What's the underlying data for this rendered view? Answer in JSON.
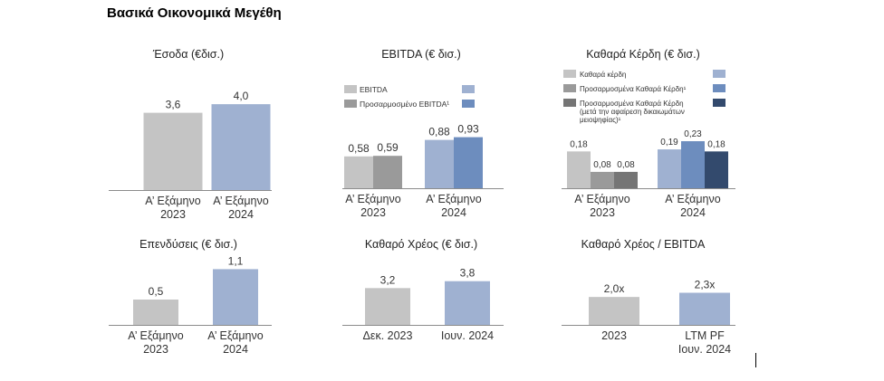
{
  "page": {
    "title": "Βασικά Οικονομικά Μεγέθη"
  },
  "colors": {
    "gray_light": "#c4c4c4",
    "gray_mid": "#9a9a9a",
    "gray_dark": "#757575",
    "blue_light": "#9fb1d1",
    "blue_mid": "#6d8dbe",
    "blue_dark": "#334a6d"
  },
  "chart_data": [
    {
      "type": "bar",
      "title": "Έσοδα (€δισ.)",
      "categories": [
        [
          "Α’ Εξάμηνο",
          "2023"
        ],
        [
          "Α’ Εξάμηνο",
          "2024"
        ]
      ],
      "series": [
        {
          "values": [
            3.6,
            4.0
          ],
          "labels": [
            "3,6",
            "4,0"
          ],
          "colors": [
            "#c4c4c4",
            "#9fb1d1"
          ]
        }
      ],
      "ylim": [
        0,
        4.3
      ]
    },
    {
      "type": "bar",
      "title": "EBITDA (€ δισ.)",
      "categories": [
        [
          "Α’ Εξάμηνο",
          "2023"
        ],
        [
          "Α’ Εξάμηνο",
          "2024"
        ]
      ],
      "series": [
        {
          "name": "EBITDA",
          "values": [
            0.58,
            0.88
          ],
          "labels": [
            "0,58",
            "0,88"
          ],
          "colors": [
            "#c4c4c4",
            "#9fb1d1"
          ]
        },
        {
          "name": "Προσαρμοσμένο EBITDA¹",
          "values": [
            0.59,
            0.93
          ],
          "labels": [
            "0,59",
            "0,93"
          ],
          "colors": [
            "#9a9a9a",
            "#6d8dbe"
          ]
        }
      ],
      "legend": [
        {
          "label": "EBITDA",
          "gray": "#c4c4c4",
          "blue": "#9fb1d1"
        },
        {
          "label": "Προσαρμοσμένο EBITDA¹",
          "gray": "#9a9a9a",
          "blue": "#6d8dbe"
        }
      ],
      "ylim": [
        0,
        1.5
      ]
    },
    {
      "type": "bar",
      "title": "Καθαρά Κέρδη (€ δισ.)",
      "categories": [
        [
          "Α’ Εξάμηνο",
          "2023"
        ],
        [
          "Α’ Εξάμηνο",
          "2024"
        ]
      ],
      "series": [
        {
          "name": "Καθαρά κέρδη",
          "values": [
            0.18,
            0.19
          ],
          "labels": [
            "0,18",
            "0,19"
          ],
          "colors": [
            "#c4c4c4",
            "#9fb1d1"
          ]
        },
        {
          "name": "Προσαρμοσμένα Καθαρά Κέρδη¹",
          "values": [
            0.08,
            0.23
          ],
          "labels": [
            "0,08",
            "0,23"
          ],
          "colors": [
            "#9a9a9a",
            "#6d8dbe"
          ]
        },
        {
          "name": "Προσαρμοσμένα Καθαρά Κέρδη (μετά την αφαίρεση δικαιωμάτων μειοψηφίας)¹",
          "values": [
            0.08,
            0.18
          ],
          "labels": [
            "0,08",
            "0,18"
          ],
          "colors": [
            "#757575",
            "#334a6d"
          ]
        }
      ],
      "legend": [
        {
          "label": "Καθαρά κέρδη",
          "gray": "#c4c4c4",
          "blue": "#9fb1d1"
        },
        {
          "label": "Προσαρμοσμένα Καθαρά Κέρδη¹",
          "gray": "#9a9a9a",
          "blue": "#6d8dbe"
        },
        {
          "label": "Προσαρμοσμένα Καθαρά Κέρδη (μετά την αφαίρεση δικαιωμάτων μειοψηφίας)¹",
          "lines": [
            "Προσαρμοσμένα Καθαρά Κέρδη",
            "(μετά την αφαίρεση δικαιωμάτων",
            "μειοψηφίας)¹"
          ],
          "gray": "#757575",
          "blue": "#334a6d"
        }
      ],
      "ylim": [
        0,
        0.5
      ]
    },
    {
      "type": "bar",
      "title": "Επενδύσεις (€ δισ.)",
      "categories": [
        [
          "Α’ Εξάμηνο",
          "2023"
        ],
        [
          "Α’ Εξάμηνο",
          "2024"
        ]
      ],
      "series": [
        {
          "values": [
            0.5,
            1.1
          ],
          "labels": [
            "0,5",
            "1,1"
          ],
          "colors": [
            "#c4c4c4",
            "#9fb1d1"
          ]
        }
      ],
      "ylim": [
        0,
        1.25
      ]
    },
    {
      "type": "bar",
      "title": "Καθαρό Χρέος (€ δισ.)",
      "categories": [
        [
          "Δεκ. 2023"
        ],
        [
          "Ιουν. 2024"
        ]
      ],
      "series": [
        {
          "values": [
            3.2,
            3.8
          ],
          "labels": [
            "3,2",
            "3,8"
          ],
          "colors": [
            "#c4c4c4",
            "#9fb1d1"
          ]
        }
      ],
      "ylim": [
        0,
        4.8
      ]
    },
    {
      "type": "bar",
      "title": "Καθαρό Χρέος / EBITDA",
      "categories": [
        [
          "2023"
        ],
        [
          "LTM PF",
          "Ιουν. 2024"
        ]
      ],
      "series": [
        {
          "values": [
            2.0,
            2.3
          ],
          "labels": [
            "2,0x",
            "2,3x"
          ],
          "colors": [
            "#c4c4c4",
            "#9fb1d1"
          ]
        }
      ],
      "ylim": [
        0,
        4.6
      ]
    }
  ]
}
